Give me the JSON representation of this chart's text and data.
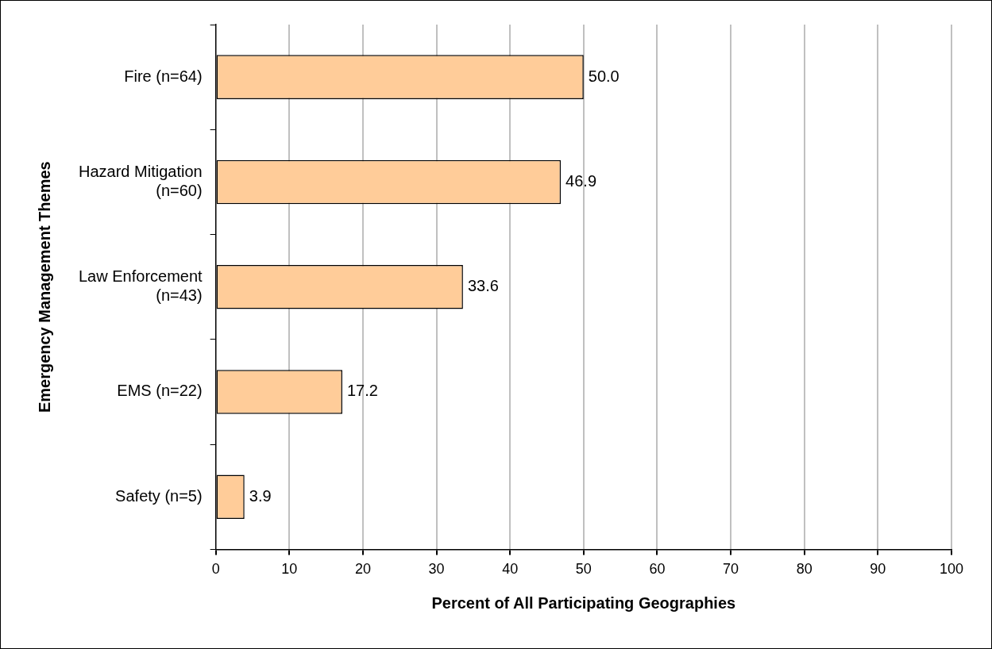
{
  "chart_data": {
    "type": "bar",
    "orientation": "horizontal",
    "xlabel": "Percent of All Participating Geographies",
    "ylabel": "Emergency Management Themes",
    "categories": [
      "Fire (n=64)",
      "Hazard Mitigation (n=60)",
      "Law Enforcement (n=43)",
      "EMS (n=22)",
      "Safety (n=5)"
    ],
    "values": [
      50.0,
      46.9,
      33.6,
      17.2,
      3.9
    ],
    "value_labels": [
      "50.0",
      "46.9",
      "33.6",
      "17.2",
      "3.9"
    ],
    "color": "#ffcc99",
    "xlim": [
      0,
      100
    ],
    "xticks": [
      0,
      10,
      20,
      30,
      40,
      50,
      60,
      70,
      80,
      90,
      100
    ],
    "grid": "x",
    "legend": false
  }
}
